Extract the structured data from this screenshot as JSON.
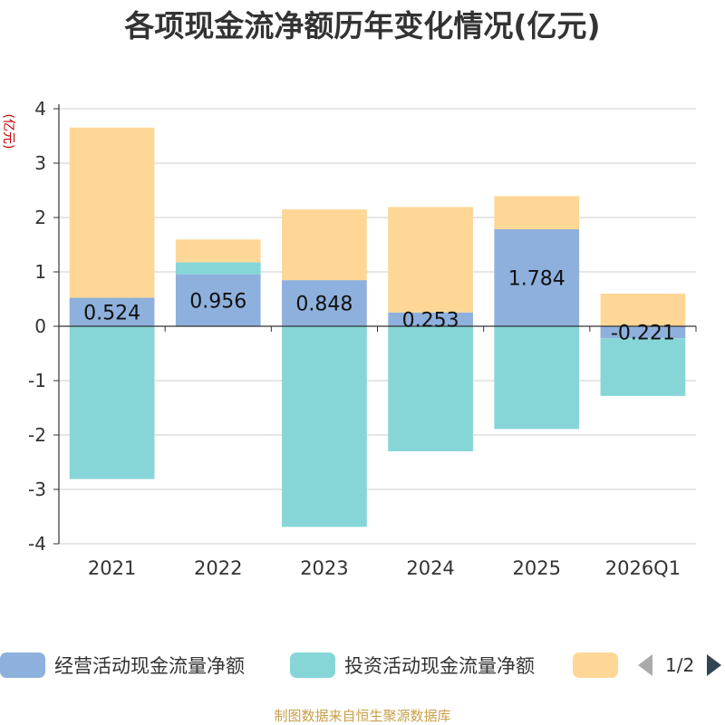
{
  "chart_data": {
    "type": "bar",
    "stacked": true,
    "title": "各项现金流净额历年变化情况(亿元)",
    "ylabel": "(亿元)",
    "ylim": [
      -4,
      4
    ],
    "yticks": [
      4,
      3,
      2,
      1,
      0,
      -1,
      -2,
      -3,
      -4
    ],
    "categories": [
      "2021",
      "2022",
      "2023",
      "2024",
      "2025",
      "2026Q1"
    ],
    "series": [
      {
        "name": "经营活动现金流量净额",
        "color": "#8eb0dc",
        "values": [
          0.524,
          0.956,
          0.848,
          0.253,
          1.784,
          -0.221
        ]
      },
      {
        "name": "投资活动现金流量净额",
        "color": "#86d6d8",
        "values": [
          -2.81,
          0.22,
          -3.69,
          -2.3,
          -1.89,
          -1.06
        ]
      },
      {
        "name": "",
        "color": "#fed796",
        "values": [
          3.13,
          0.42,
          1.3,
          1.94,
          0.61,
          0.6
        ]
      }
    ],
    "data_labels": [
      "0.524",
      "0.956",
      "0.848",
      "0.253",
      "1.784",
      "-0.221"
    ],
    "grid": true,
    "legend_position": "bottom",
    "legend_page": "1/2"
  },
  "source": "制图数据来自恒生聚源数据库"
}
